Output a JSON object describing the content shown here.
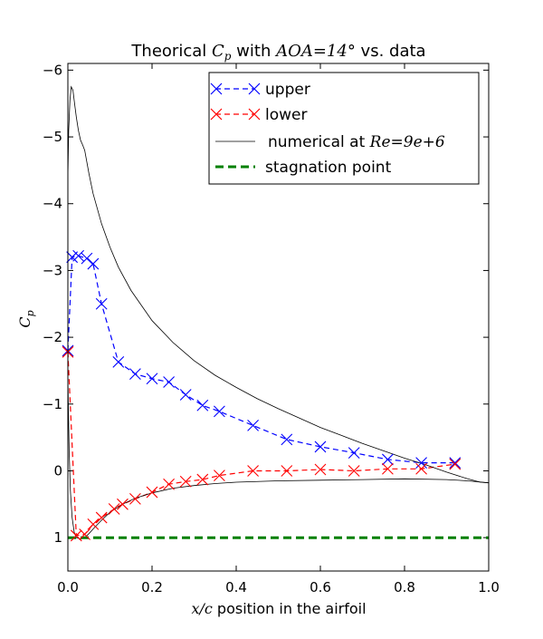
{
  "chart_data": {
    "type": "line",
    "title_prefix": "Theorical ",
    "title_cp_base": "C",
    "title_cp_sub": "p",
    "title_mid": " with ",
    "title_aoa": "AOA=14°",
    "title_suffix": " vs. data",
    "xlabel_var": "x/c",
    "xlabel_text": " position in the airfoil",
    "ylabel_base": "C",
    "ylabel_sub": "p",
    "xlim": [
      0,
      1
    ],
    "ylim": [
      1.5,
      -6.1
    ],
    "x_ticks": [
      0.0,
      0.2,
      0.4,
      0.6,
      0.8,
      1.0
    ],
    "x_tick_labels": [
      "0.0",
      "0.2",
      "0.4",
      "0.6",
      "0.8",
      "1.0"
    ],
    "y_ticks": [
      -6,
      -5,
      -4,
      -3,
      -2,
      -1,
      0,
      1
    ],
    "y_tick_labels": [
      "−6",
      "−5",
      "−4",
      "−3",
      "−2",
      "−1",
      "0",
      "1"
    ],
    "legend": {
      "placement": "top-right",
      "upper": "upper",
      "lower": "lower",
      "numerical_prefix": "numerical at ",
      "numerical_math": "Re=9e+6",
      "stagnation": "stagnation point"
    },
    "colors": {
      "upper": "#0000ff",
      "lower": "#ff0000",
      "numerical": "#000000",
      "stagnation": "#008000"
    },
    "series": [
      {
        "name": "upper",
        "style": "dashed-x",
        "x": [
          0.0,
          0.01,
          0.025,
          0.045,
          0.06,
          0.08,
          0.12,
          0.16,
          0.2,
          0.24,
          0.28,
          0.32,
          0.36,
          0.44,
          0.52,
          0.6,
          0.68,
          0.76,
          0.84,
          0.92
        ],
        "y": [
          -1.8,
          -3.2,
          -3.22,
          -3.18,
          -3.1,
          -2.5,
          -1.63,
          -1.45,
          -1.38,
          -1.33,
          -1.14,
          -0.98,
          -0.89,
          -0.68,
          -0.47,
          -0.36,
          -0.27,
          -0.17,
          -0.12,
          -0.12
        ]
      },
      {
        "name": "lower",
        "style": "dashed-x",
        "x": [
          0.0,
          0.02,
          0.04,
          0.06,
          0.08,
          0.11,
          0.13,
          0.16,
          0.2,
          0.24,
          0.28,
          0.32,
          0.36,
          0.44,
          0.52,
          0.6,
          0.68,
          0.76,
          0.84,
          0.92
        ],
        "y": [
          -1.78,
          0.97,
          0.95,
          0.8,
          0.7,
          0.57,
          0.5,
          0.42,
          0.32,
          0.2,
          0.16,
          0.13,
          0.07,
          0.0,
          0.0,
          -0.02,
          0.0,
          -0.03,
          -0.03,
          -0.1
        ]
      },
      {
        "name": "numerical at Re=9e+6",
        "style": "solid",
        "x": [
          0.0,
          0.002,
          0.005,
          0.008,
          0.012,
          0.016,
          0.02,
          0.025,
          0.03,
          0.035,
          0.04,
          0.05,
          0.06,
          0.08,
          0.1,
          0.12,
          0.15,
          0.2,
          0.25,
          0.3,
          0.35,
          0.4,
          0.45,
          0.5,
          0.55,
          0.6,
          0.65,
          0.7,
          0.75,
          0.8,
          0.85,
          0.9,
          0.95,
          0.98,
          1.0
        ],
        "y": [
          -4.4,
          -5.1,
          -5.55,
          -5.75,
          -5.7,
          -5.5,
          -5.3,
          -5.1,
          -4.95,
          -4.88,
          -4.8,
          -4.45,
          -4.15,
          -3.7,
          -3.35,
          -3.05,
          -2.7,
          -2.25,
          -1.92,
          -1.65,
          -1.43,
          -1.25,
          -1.08,
          -0.93,
          -0.79,
          -0.65,
          -0.53,
          -0.41,
          -0.3,
          -0.19,
          -0.09,
          0.02,
          0.12,
          0.17,
          0.18
        ]
      },
      {
        "name": "numerical at Re=9e+6 (lower side)",
        "style": "solid",
        "x": [
          0.0,
          0.003,
          0.006,
          0.01,
          0.015,
          0.02,
          0.03,
          0.04,
          0.05,
          0.06,
          0.08,
          0.1,
          0.13,
          0.16,
          0.2,
          0.25,
          0.3,
          0.35,
          0.4,
          0.5,
          0.6,
          0.7,
          0.8,
          0.9,
          0.95,
          1.0
        ],
        "y": [
          -1.4,
          -0.3,
          0.3,
          0.7,
          0.92,
          1.0,
          1.02,
          1.0,
          0.94,
          0.87,
          0.74,
          0.62,
          0.5,
          0.41,
          0.33,
          0.26,
          0.22,
          0.19,
          0.17,
          0.15,
          0.14,
          0.13,
          0.12,
          0.13,
          0.15,
          0.18
        ]
      },
      {
        "name": "stagnation point",
        "style": "dashed",
        "x": [
          0.0,
          1.0
        ],
        "y": [
          1.0,
          1.0
        ]
      }
    ]
  }
}
